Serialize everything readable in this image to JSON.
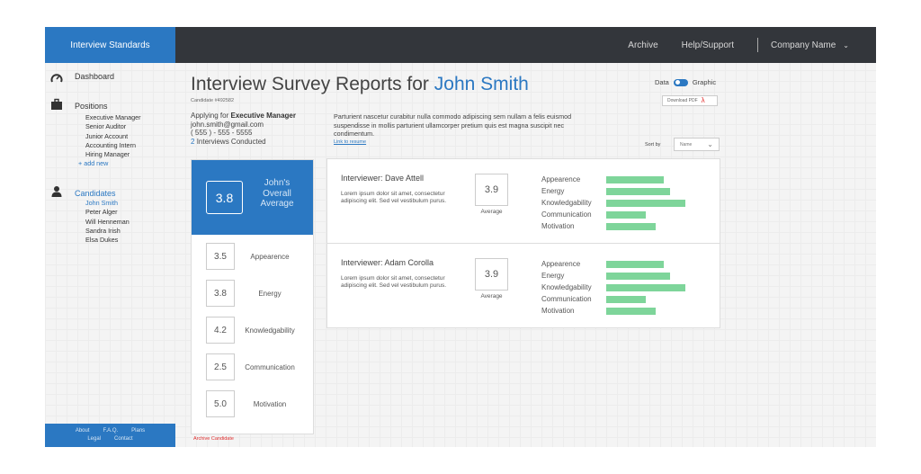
{
  "header": {
    "brand": "Interview Standards",
    "nav": [
      "Archive",
      "Help/Support"
    ],
    "company": "Company Name"
  },
  "sidebar": {
    "dashboard": "Dashboard",
    "positions_title": "Positions",
    "positions": [
      "Executive Manager",
      "Senior Auditor",
      "Junior Account",
      "Accounting Intern",
      "Hiring Manager"
    ],
    "add_new": "+ add new",
    "candidates_title": "Candidates",
    "candidates": [
      "John Smith",
      "Peter Alger",
      "Will Henneman",
      "Sandra Irish",
      "Elsa Dukes"
    ],
    "active_candidate": "John Smith",
    "footer": {
      "row1": [
        "About",
        "F.A.Q.",
        "Plans"
      ],
      "row2": [
        "Legal",
        "Contact"
      ]
    }
  },
  "page": {
    "title_prefix": "Interview Survey Reports for",
    "title_name": "John Smith",
    "candidate_id": "Candidate #492582",
    "toggle_left": "Data",
    "toggle_right": "Graphic",
    "download_pdf": "Download PDF",
    "applying_prefix": "Applying for",
    "applying_position": "Executive Manager",
    "email": "john.smith@gmail.com",
    "phone": "( 555 ) - 555 - 5555",
    "interviews_count": "2",
    "interviews_label": "Interviews Conducted",
    "description": "Parturient nascetur curabitur nulla commodo adipiscing sem nullam a felis euismod suspendisse in mollis parturient ullamcorper pretium quis est magna suscipit nec condimentum.",
    "link_resume": "Link to resume",
    "sort_by": "Sort by",
    "sort_value": "Name",
    "archive_candidate": "Archive Candidate"
  },
  "overall": {
    "score": "3.8",
    "label": "John's Overall Average",
    "metrics": [
      {
        "score": "3.5",
        "label": "Appearence"
      },
      {
        "score": "3.8",
        "label": "Energy"
      },
      {
        "score": "4.2",
        "label": "Knowledgability"
      },
      {
        "score": "2.5",
        "label": "Communication"
      },
      {
        "score": "5.0",
        "label": "Motivation"
      }
    ]
  },
  "reports": [
    {
      "interviewer": "Interviewer: Dave Attell",
      "text": "Lorem ipsum dolor sit amet, consectetur adipiscing elit. Sed vel vestibulum purus.",
      "score": "3.9",
      "avg_label": "Average",
      "bars": [
        {
          "label": "Appearence",
          "value": 0.73
        },
        {
          "label": "Energy",
          "value": 0.81
        },
        {
          "label": "Knowledgability",
          "value": 1.0
        },
        {
          "label": "Communication",
          "value": 0.5
        },
        {
          "label": "Motivation",
          "value": 0.63
        }
      ]
    },
    {
      "interviewer": "Interviewer: Adam Corolla",
      "text": "Lorem ipsum dolor sit amet, consectetur adipiscing elit. Sed vel vestibulum purus.",
      "score": "3.9",
      "avg_label": "Average",
      "bars": [
        {
          "label": "Appearence",
          "value": 0.73
        },
        {
          "label": "Energy",
          "value": 0.81
        },
        {
          "label": "Knowledgability",
          "value": 1.0
        },
        {
          "label": "Communication",
          "value": 0.5
        },
        {
          "label": "Motivation",
          "value": 0.63
        }
      ]
    }
  ],
  "colors": {
    "accent": "#2b78c2",
    "topbar": "#33363b",
    "bar": "#7ed59a",
    "danger": "#e03030"
  }
}
